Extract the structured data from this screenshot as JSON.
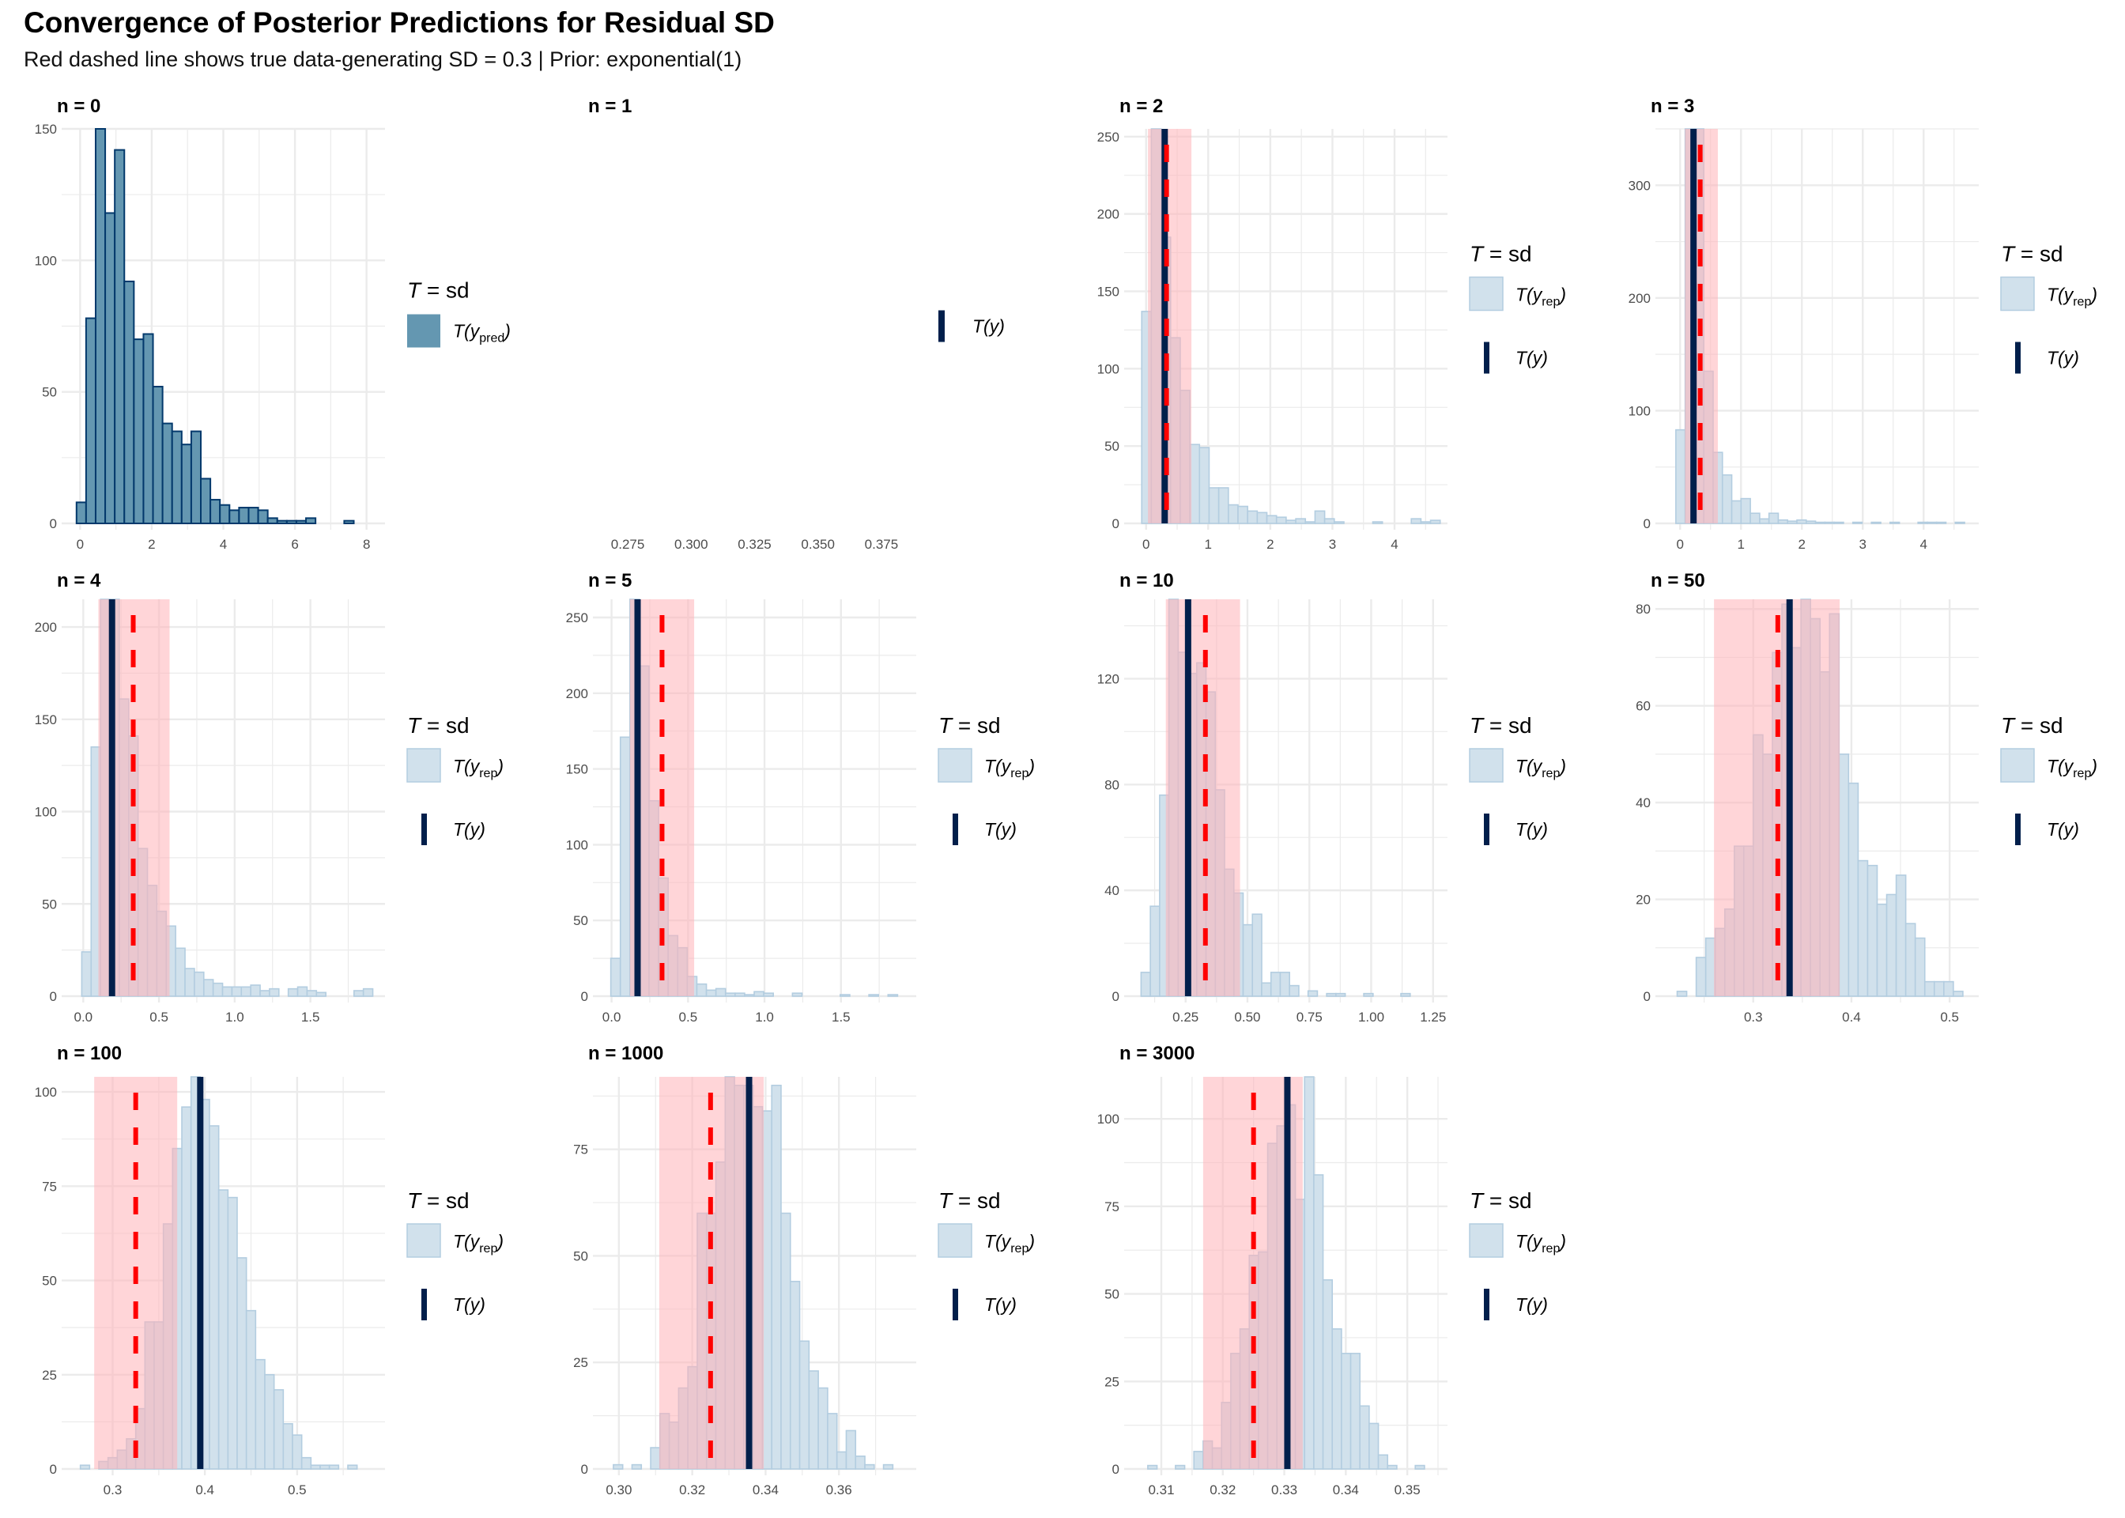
{
  "header": {
    "title": "Convergence of Posterior Predictions for Residual SD",
    "subtitle": "Red dashed line shows true data-generating SD = 0.3 | Prior: exponential(1)"
  },
  "colors": {
    "prior_fill": "#6497b1",
    "prior_stroke": "#03396c",
    "rep_fill": "#d1e1ec",
    "rep_stroke": "#b3cde0",
    "observed_line": "#011f4b",
    "true_line": "#ff0000",
    "interval_band": "#ffb3b8",
    "grid": "#ebebeb"
  },
  "legend": {
    "title_T": "T",
    "title_rest": " = sd",
    "pred_label": "T(y",
    "pred_sub": "pred",
    "rep_label": "T(y",
    "rep_sub": "rep",
    "obs_label": "T(y)",
    "close_paren": ")"
  },
  "chart_data": [
    {
      "type": "bar",
      "panel": "n = 0",
      "kind": "prior",
      "xlim": [
        -0.25,
        8.25
      ],
      "ylim": [
        0,
        150
      ],
      "xticks": [
        0,
        2,
        4,
        6,
        8
      ],
      "xtick_labels": [
        "0",
        "2",
        "4",
        "6",
        "8"
      ],
      "yticks": [
        0,
        50,
        100,
        150
      ],
      "ytick_labels": [
        "0",
        "50",
        "100",
        "150"
      ],
      "bin_start": -0.1,
      "bin_width": 0.267,
      "values": [
        8,
        78,
        150,
        118,
        142,
        92,
        70,
        72,
        52,
        38,
        35,
        30,
        35,
        17,
        9,
        7,
        5,
        6,
        6,
        5,
        2,
        1,
        1,
        1,
        2,
        0,
        0,
        0,
        1
      ],
      "observed": null,
      "truth": null,
      "band": null
    },
    {
      "type": "bar",
      "panel": "n = 1",
      "kind": "empty",
      "xlim": [
        0.265,
        0.385
      ],
      "ylim": [
        0,
        1
      ],
      "xticks": [
        0.275,
        0.3,
        0.325,
        0.35,
        0.375
      ],
      "xtick_labels": [
        "0.275",
        "0.300",
        "0.325",
        "0.350",
        "0.375"
      ],
      "yticks": [],
      "ytick_labels": [],
      "bin_start": 0,
      "bin_width": 1,
      "values": [],
      "observed": null,
      "truth": null,
      "band": null
    },
    {
      "type": "bar",
      "panel": "n = 2",
      "kind": "rep",
      "xlim": [
        -0.2,
        4.7
      ],
      "ylim": [
        0,
        255
      ],
      "xticks": [
        0,
        1,
        2,
        3,
        4
      ],
      "xtick_labels": [
        "0",
        "1",
        "2",
        "3",
        "4"
      ],
      "yticks": [
        0,
        50,
        100,
        150,
        200,
        250
      ],
      "ytick_labels": [
        "0",
        "50",
        "100",
        "150",
        "200",
        "250"
      ],
      "bin_start": -0.07,
      "bin_width": 0.155,
      "values": [
        137,
        260,
        185,
        120,
        86,
        51,
        49,
        23,
        23,
        12,
        11,
        8,
        7,
        5,
        4,
        2,
        3,
        1,
        8,
        3,
        1,
        0,
        0,
        0,
        1,
        0,
        0,
        0,
        3,
        1,
        2
      ],
      "observed": 0.3,
      "truth": 0.33,
      "band": [
        0.03,
        0.73
      ]
    },
    {
      "type": "bar",
      "panel": "n = 3",
      "kind": "rep",
      "xlim": [
        -0.25,
        4.75
      ],
      "ylim": [
        0,
        350
      ],
      "xticks": [
        0,
        1,
        2,
        3,
        4
      ],
      "xtick_labels": [
        "0",
        "1",
        "2",
        "3",
        "4"
      ],
      "yticks": [
        0,
        100,
        200,
        300
      ],
      "ytick_labels": [
        "0",
        "100",
        "200",
        "300"
      ],
      "bin_start": -0.07,
      "bin_width": 0.153,
      "values": [
        83,
        370,
        380,
        135,
        63,
        43,
        20,
        22,
        9,
        4,
        9,
        3,
        2,
        3,
        2,
        1,
        1,
        1,
        0,
        1,
        0,
        1,
        0,
        1,
        0,
        0,
        1,
        1,
        1,
        0,
        1
      ],
      "observed": 0.22,
      "truth": 0.33,
      "band": [
        0.08,
        0.62
      ]
    },
    {
      "type": "bar",
      "panel": "n = 4",
      "kind": "rep",
      "xlim": [
        -0.08,
        1.93
      ],
      "ylim": [
        0,
        215
      ],
      "xticks": [
        0,
        0.5,
        1.0,
        1.5
      ],
      "xtick_labels": [
        "0.0",
        "0.5",
        "1.0",
        "1.5"
      ],
      "yticks": [
        0,
        50,
        100,
        150,
        200
      ],
      "ytick_labels": [
        "0",
        "50",
        "100",
        "150",
        "200"
      ],
      "bin_start": -0.01,
      "bin_width": 0.062,
      "values": [
        24,
        135,
        215,
        215,
        161,
        141,
        80,
        60,
        46,
        38,
        26,
        15,
        13,
        9,
        7,
        5,
        5,
        5,
        6,
        3,
        4,
        0,
        4,
        5,
        3,
        2,
        0,
        0,
        0,
        3,
        4
      ],
      "observed": 0.19,
      "truth": 0.33,
      "band": [
        0.1,
        0.57
      ]
    },
    {
      "type": "bar",
      "panel": "n = 5",
      "kind": "rep",
      "xlim": [
        -0.06,
        1.93
      ],
      "ylim": [
        0,
        262
      ],
      "xticks": [
        0,
        0.5,
        1.0,
        1.5
      ],
      "xtick_labels": [
        "0.0",
        "0.5",
        "1.0",
        "1.5"
      ],
      "yticks": [
        0,
        50,
        100,
        150,
        200,
        250
      ],
      "ytick_labels": [
        "0",
        "50",
        "100",
        "150",
        "200",
        "250"
      ],
      "bin_start": -0.005,
      "bin_width": 0.0625,
      "values": [
        25,
        171,
        262,
        218,
        129,
        78,
        40,
        32,
        13,
        8,
        4,
        5,
        2,
        2,
        1,
        3,
        2,
        0,
        0,
        2,
        0,
        0,
        0,
        0,
        1,
        0,
        0,
        1,
        0,
        1
      ],
      "observed": 0.17,
      "truth": 0.33,
      "band": [
        0.12,
        0.54
      ]
    },
    {
      "type": "bar",
      "panel": "n = 10",
      "kind": "rep",
      "xlim": [
        0.04,
        1.27
      ],
      "ylim": [
        0,
        150
      ],
      "xticks": [
        0.25,
        0.5,
        0.75,
        1.0,
        1.25
      ],
      "xtick_labels": [
        "0.25",
        "0.50",
        "0.75",
        "1.00",
        "1.25"
      ],
      "yticks": [
        0,
        40,
        80,
        120
      ],
      "ytick_labels": [
        "0",
        "40",
        "80",
        "120"
      ],
      "bin_start": 0.07,
      "bin_width": 0.0375,
      "values": [
        9,
        34,
        76,
        150,
        130,
        122,
        126,
        115,
        78,
        48,
        39,
        27,
        31,
        5,
        9,
        9,
        4,
        0,
        2,
        0,
        1,
        1,
        0,
        0,
        1,
        0,
        0,
        0,
        1
      ],
      "observed": 0.26,
      "truth": 0.33,
      "band": [
        0.17,
        0.47
      ]
    },
    {
      "type": "bar",
      "panel": "n = 50",
      "kind": "rep",
      "xlim": [
        0.21,
        0.52
      ],
      "ylim": [
        0,
        82
      ],
      "xticks": [
        0.3,
        0.4,
        0.5
      ],
      "xtick_labels": [
        "0.3",
        "0.4",
        "0.5"
      ],
      "yticks": [
        0,
        20,
        40,
        60,
        80
      ],
      "ytick_labels": [
        "0",
        "20",
        "40",
        "60",
        "80"
      ],
      "bin_start": 0.2225,
      "bin_width": 0.0097,
      "values": [
        1,
        0,
        8,
        12,
        14,
        18,
        31,
        31,
        54,
        50,
        71,
        81,
        72,
        84,
        78,
        67,
        79,
        50,
        44,
        28,
        27,
        19,
        21,
        25,
        15,
        12,
        3,
        3,
        3,
        1
      ],
      "observed": 0.337,
      "truth": 0.325,
      "band": [
        0.26,
        0.388
      ]
    },
    {
      "type": "bar",
      "panel": "n = 100",
      "kind": "rep",
      "xlim": [
        0.255,
        0.585
      ],
      "ylim": [
        0,
        104
      ],
      "xticks": [
        0.3,
        0.4,
        0.5
      ],
      "xtick_labels": [
        "0.3",
        "0.4",
        "0.5"
      ],
      "yticks": [
        0,
        25,
        50,
        75,
        100
      ],
      "ytick_labels": [
        "0",
        "25",
        "50",
        "75",
        "100"
      ],
      "bin_start": 0.265,
      "bin_width": 0.01,
      "values": [
        1,
        0,
        2,
        3,
        5,
        8,
        16,
        39,
        39,
        65,
        85,
        96,
        104,
        98,
        91,
        74,
        72,
        56,
        42,
        29,
        25,
        21,
        12,
        9,
        3,
        1,
        1,
        1,
        0,
        1
      ],
      "observed": 0.395,
      "truth": 0.325,
      "band": [
        0.28,
        0.37
      ]
    },
    {
      "type": "bar",
      "panel": "n = 1000",
      "kind": "rep",
      "xlim": [
        0.2955,
        0.3785
      ],
      "ylim": [
        0,
        92
      ],
      "xticks": [
        0.3,
        0.32,
        0.34,
        0.36
      ],
      "xtick_labels": [
        "0.30",
        "0.32",
        "0.34",
        "0.36"
      ],
      "yticks": [
        0,
        25,
        50,
        75
      ],
      "ytick_labels": [
        "0",
        "25",
        "50",
        "75"
      ],
      "bin_start": 0.2985,
      "bin_width": 0.00254,
      "values": [
        1,
        0,
        1,
        0,
        5,
        13,
        11,
        19,
        24,
        60,
        60,
        72,
        92,
        90,
        90,
        85,
        84,
        90,
        60,
        44,
        30,
        23,
        19,
        13,
        4,
        9,
        3,
        1,
        0,
        1
      ],
      "observed": 0.3355,
      "truth": 0.325,
      "band": [
        0.311,
        0.3395
      ]
    },
    {
      "type": "bar",
      "panel": "n = 3000",
      "kind": "rep",
      "xlim": [
        0.3055,
        0.355
      ],
      "ylim": [
        0,
        112
      ],
      "xticks": [
        0.31,
        0.32,
        0.33,
        0.34,
        0.35
      ],
      "xtick_labels": [
        "0.31",
        "0.32",
        "0.33",
        "0.34",
        "0.35"
      ],
      "yticks": [
        0,
        25,
        50,
        75,
        100
      ],
      "ytick_labels": [
        "0",
        "25",
        "50",
        "75",
        "100"
      ],
      "bin_start": 0.3078,
      "bin_width": 0.0015,
      "values": [
        1,
        0,
        0,
        1,
        0,
        5,
        8,
        6,
        19,
        33,
        40,
        61,
        62,
        93,
        98,
        104,
        77,
        113,
        84,
        54,
        40,
        33,
        33,
        18,
        13,
        4,
        1,
        0,
        0,
        1
      ],
      "observed": 0.3305,
      "truth": 0.325,
      "band": [
        0.3168,
        0.333
      ]
    }
  ]
}
